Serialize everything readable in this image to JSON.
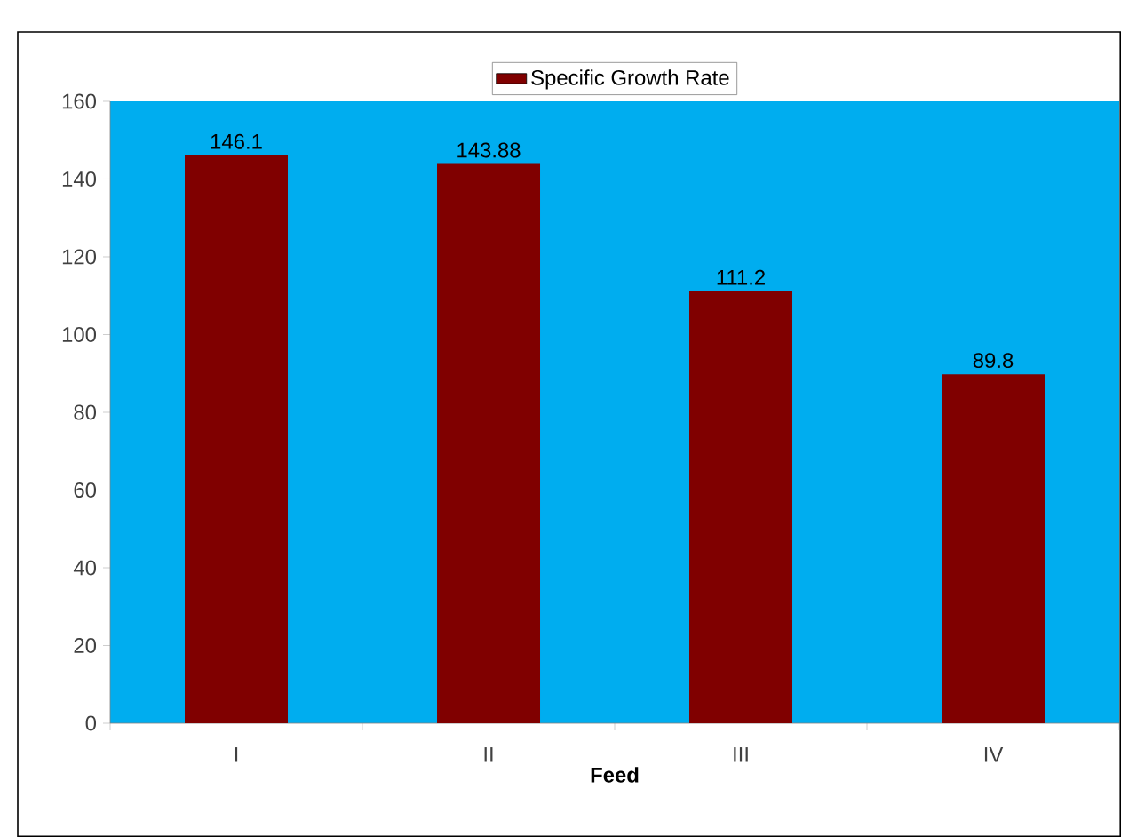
{
  "chart_data": {
    "type": "bar",
    "xlabel": "Feed",
    "categories": [
      "I",
      "II",
      "III",
      "IV"
    ],
    "series": [
      {
        "name": "Specific Growth Rate",
        "color": "#800000",
        "values": [
          146.1,
          143.88,
          111.2,
          89.8
        ]
      }
    ],
    "ylim": [
      0,
      160
    ],
    "yticks": [
      0,
      20,
      40,
      60,
      80,
      100,
      120,
      140,
      160
    ],
    "data_labels": true,
    "legend": "top"
  }
}
